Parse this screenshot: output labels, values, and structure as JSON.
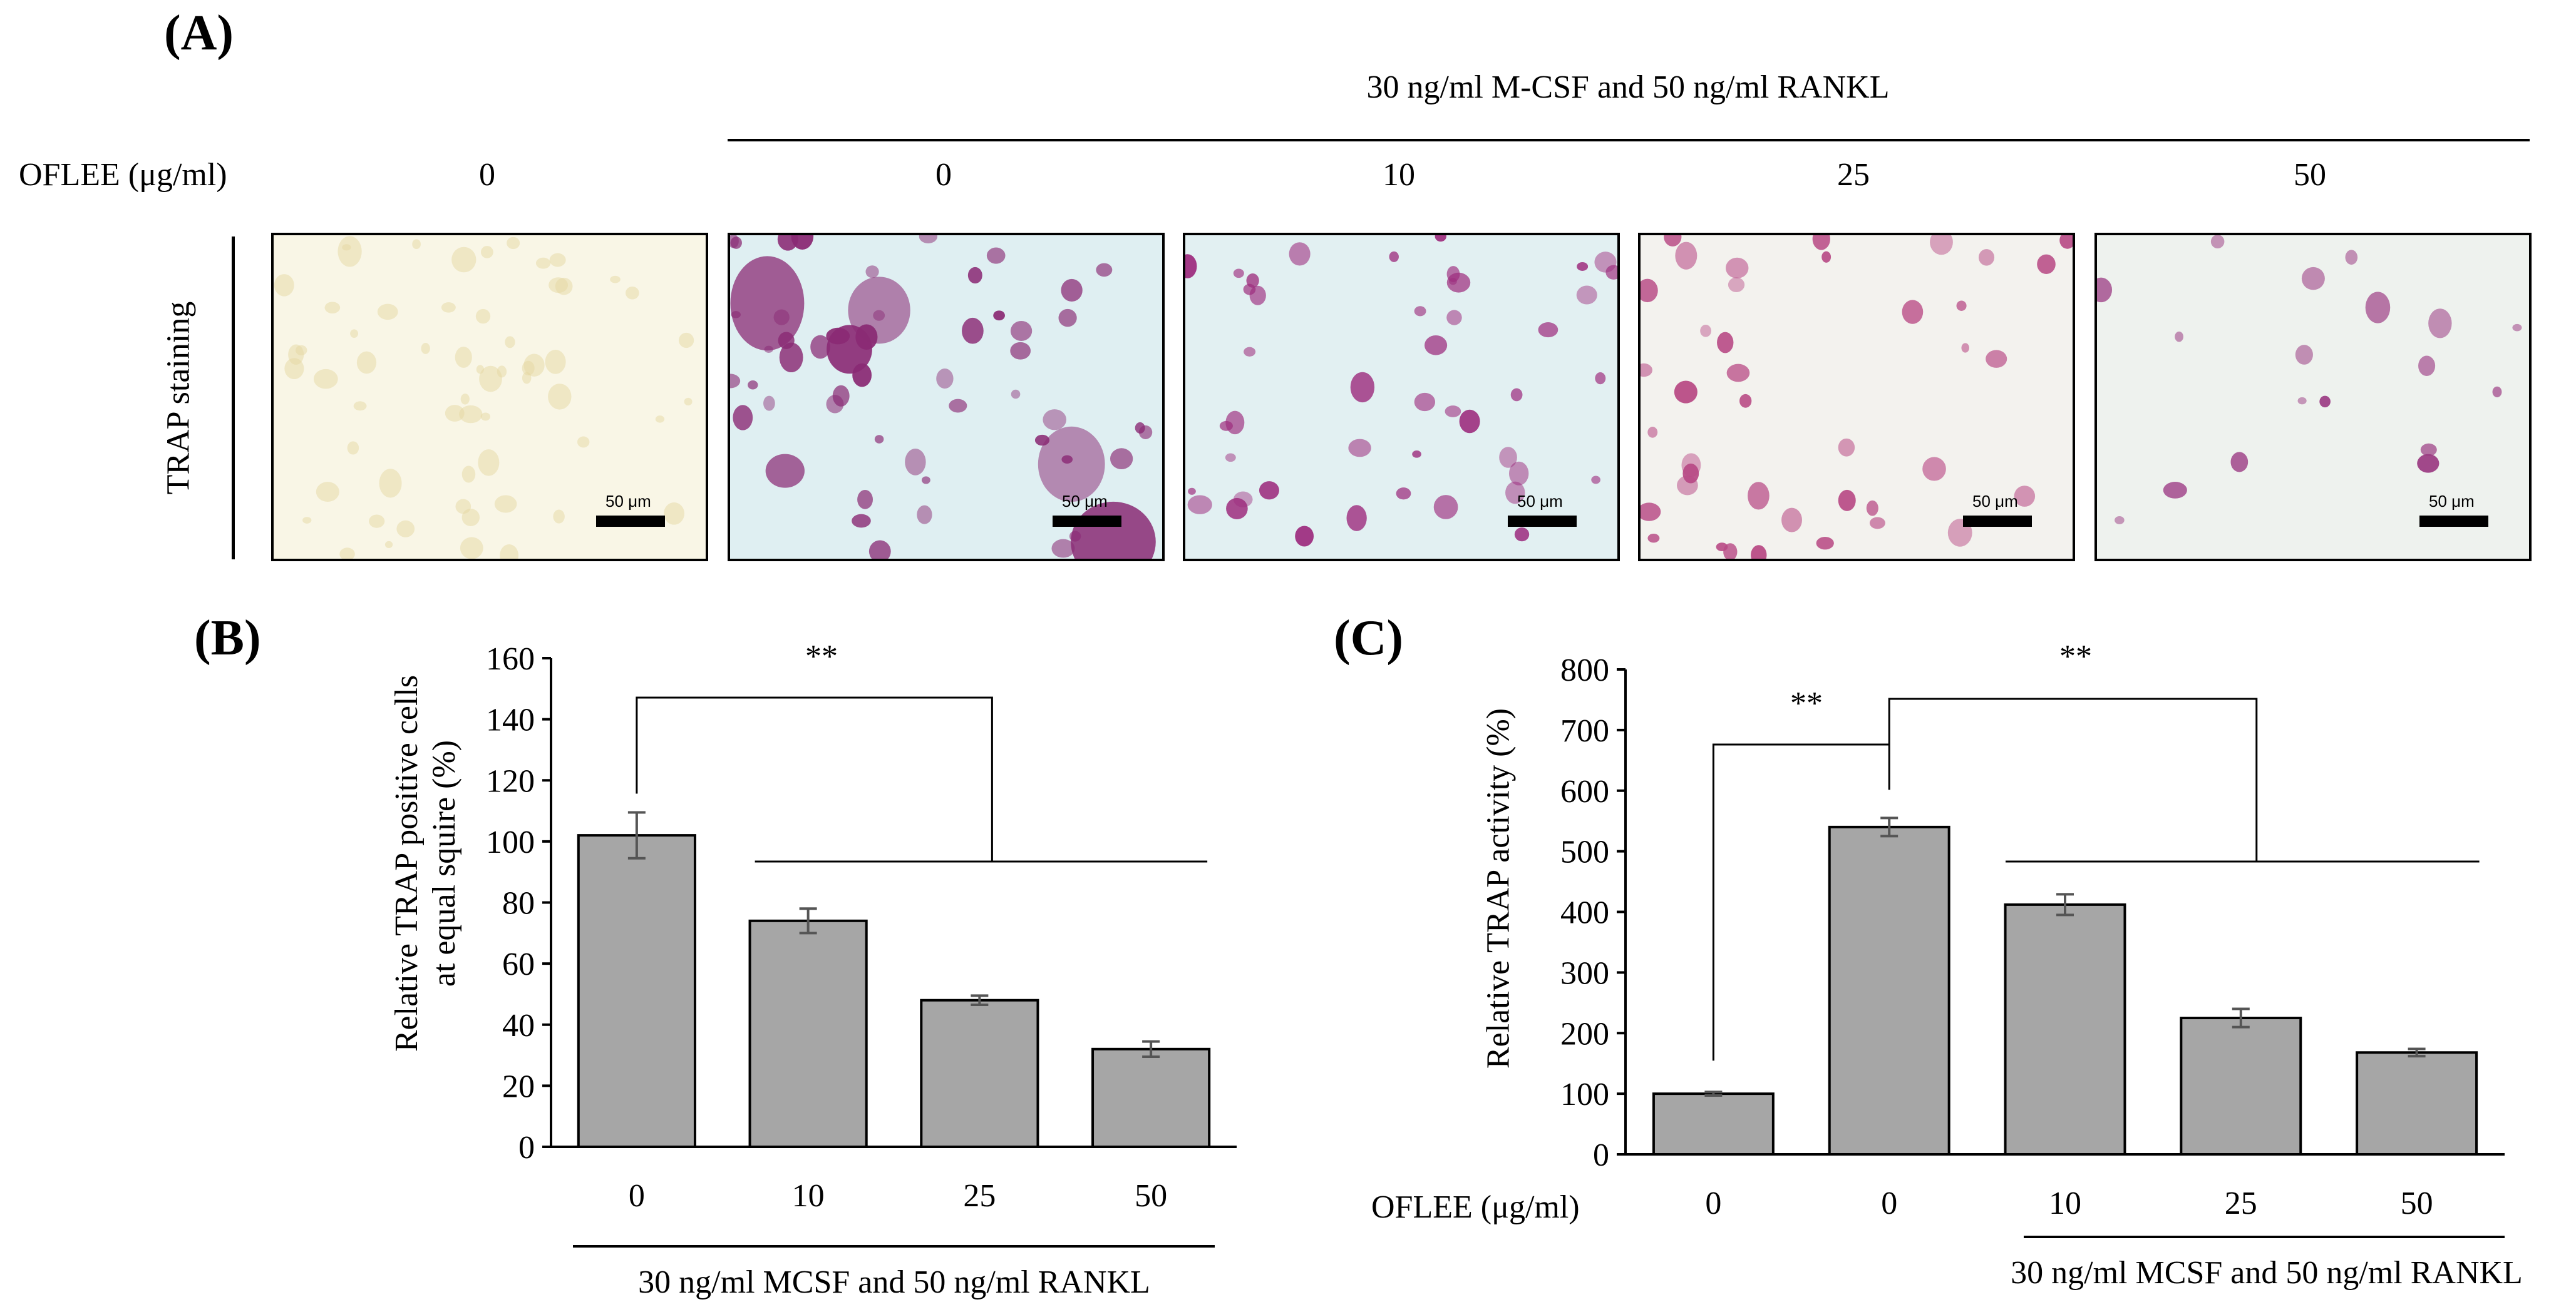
{
  "panel_a": {
    "label": "(A)",
    "condition_header": "30 ng/ml M-CSF and 50 ng/ml RANKL",
    "row_label": "OFLEE (μg/ml)",
    "side_label": "TRAP staining",
    "columns": [
      {
        "dose": "0",
        "scale": "50 μm",
        "tone": "#f9f6e6",
        "cell": "#e6d7a2",
        "stain": "none"
      },
      {
        "dose": "0",
        "scale": "50 μm",
        "tone": "#dfeff2",
        "cell": "#8a2a74",
        "stain": "heavy"
      },
      {
        "dose": "10",
        "scale": "50 μm",
        "tone": "#e2f0f2",
        "cell": "#9d2d7e",
        "stain": "medium"
      },
      {
        "dose": "25",
        "scale": "50 μm",
        "tone": "#f3f2ee",
        "cell": "#b84a85",
        "stain": "light"
      },
      {
        "dose": "50",
        "scale": "50 μm",
        "tone": "#eef2ee",
        "cell": "#9b3b83",
        "stain": "sparse"
      }
    ]
  },
  "panel_b": {
    "label": "(B)",
    "footer": "30 ng/ml MCSF and  50 ng/ml RANKL",
    "significance": "**"
  },
  "panel_c": {
    "label": "(C)",
    "row_label": "OFLEE (μg/ml)",
    "footer": "30 ng/ml MCSF and  50 ng/ml RANKL",
    "significance_1": "**",
    "significance_2": "**"
  },
  "chart_data": [
    {
      "type": "bar",
      "categories": [
        "0",
        "10",
        "25",
        "50"
      ],
      "values": [
        102,
        74,
        48,
        32
      ],
      "errors": [
        7.5,
        4,
        1.5,
        2.5
      ],
      "ylabel": "Relative TRAP positive cells\nat equal squire (%)",
      "ylim": [
        0,
        160
      ],
      "yticks": [
        "0",
        "20",
        "40",
        "60",
        "80",
        "100",
        "120",
        "140",
        "160"
      ],
      "bar_color": "#a6a6a6"
    },
    {
      "type": "bar",
      "categories": [
        "0",
        "0",
        "10",
        "25",
        "50"
      ],
      "values": [
        100,
        540,
        412,
        225,
        168
      ],
      "errors": [
        3,
        15,
        17,
        15,
        6
      ],
      "ylabel": "Relative TRAP activity (%)",
      "ylim": [
        0,
        800
      ],
      "yticks": [
        "0",
        "100",
        "200",
        "300",
        "400",
        "500",
        "600",
        "700",
        "800"
      ],
      "bar_color": "#a6a6a6"
    }
  ]
}
